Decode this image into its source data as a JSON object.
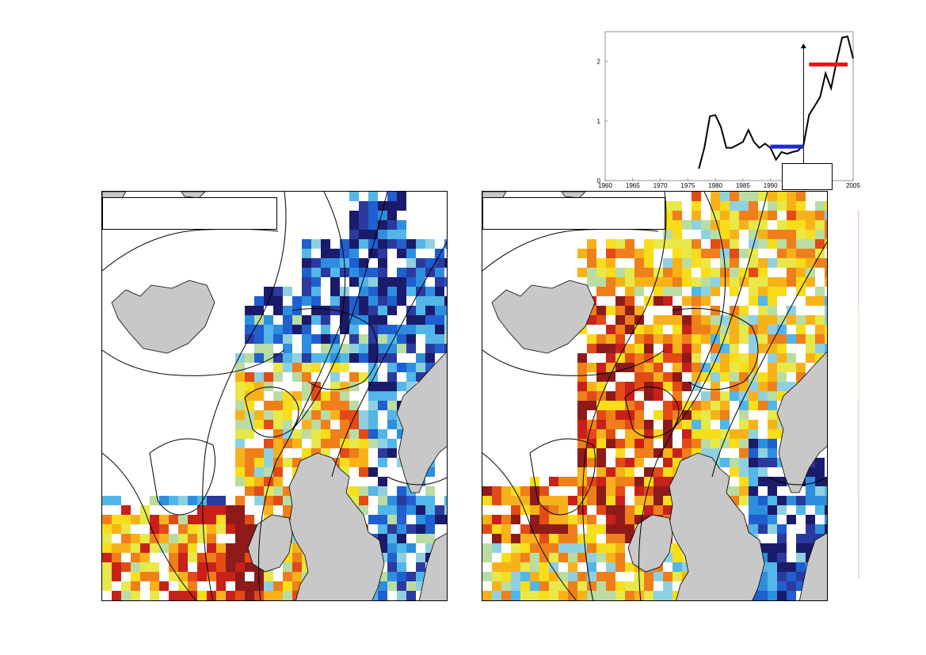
{
  "left_map": {
    "label": ""
  },
  "right_map": {
    "label": ""
  },
  "inset": {
    "annotation": "",
    "colors": {
      "line": "#000000",
      "before_bar": "#1f2bd6",
      "after_bar": "#e81515",
      "axis": "#000000"
    }
  },
  "chart_data": {
    "type": "line",
    "title": "",
    "xlabel": "",
    "ylabel": "",
    "xlim": [
      1960,
      2005
    ],
    "ylim": [
      0,
      2.5
    ],
    "xticks": [
      1960,
      1965,
      1970,
      1975,
      1980,
      1985,
      1990,
      2005
    ],
    "yticks": [
      0,
      1,
      2
    ],
    "series": [
      {
        "x": [
          1977,
          1978,
          1979,
          1980,
          1981,
          1982,
          1983,
          1984,
          1985,
          1986,
          1987,
          1988,
          1989,
          1990,
          1991,
          1992,
          1993,
          1994,
          1995,
          1996,
          1997,
          1998,
          1999,
          2000,
          2001,
          2002,
          2003,
          2004,
          2005
        ],
        "values": [
          0.2,
          0.55,
          1.08,
          1.1,
          0.9,
          0.55,
          0.55,
          0.6,
          0.65,
          0.85,
          0.65,
          0.55,
          0.62,
          0.55,
          0.35,
          0.48,
          0.45,
          0.48,
          0.5,
          0.6,
          1.1,
          1.25,
          1.4,
          1.8,
          1.55,
          2.0,
          2.4,
          2.42,
          2.05
        ]
      }
    ],
    "segments": [
      {
        "x_start": 1990,
        "x_end": 1996,
        "value": 0.57
      },
      {
        "x_start": 1997,
        "x_end": 2004,
        "value": 1.95
      }
    ],
    "vertical_arrow": {
      "x": 1996,
      "from": 0.0,
      "to": 2.3
    }
  },
  "grid_colors": {
    "palette": [
      "#1b1b6b",
      "#2b3a9e",
      "#1f5fcf",
      "#2d8ee0",
      "#52b6e8",
      "#8fd0e0",
      "#b9dca2",
      "#e8e84a",
      "#f7dd1a",
      "#f7b21a",
      "#ef7f1a",
      "#e24b16",
      "#c9201a",
      "#8e1a1a",
      "#4a4a7a"
    ]
  }
}
